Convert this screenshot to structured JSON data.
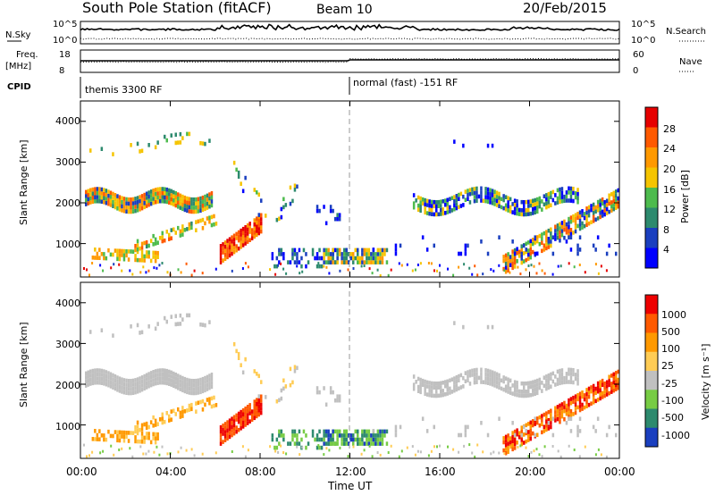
{
  "header": {
    "station": "South Pole Station (fitACF)",
    "beam": "Beam 10",
    "date": "20/Feb/2015"
  },
  "noise_panel": {
    "left_label": "N.Sky",
    "right_label": "N.Search",
    "ticks_left": [
      "10^5",
      "10^0"
    ],
    "ticks_right": [
      "10^5",
      "10^0"
    ]
  },
  "freq_panel": {
    "left_label_1": "Freq.",
    "left_label_2": "[MHz]",
    "right_label": "Nave",
    "ticks_left": [
      "18",
      "8"
    ],
    "ticks_right": [
      "60",
      "0"
    ]
  },
  "cpid_panel": {
    "label": "CPID",
    "modes": [
      "themis 3300 RF",
      "normal (fast) -151 RF"
    ]
  },
  "colors": {
    "power": [
      "#0000ff",
      "#1a3fbf",
      "#2d8a6e",
      "#4dbb4d",
      "#f5c400",
      "#ff9900",
      "#ff5a00",
      "#e60000"
    ],
    "velocity": [
      "#ee0000",
      "#ff5a00",
      "#ff9900",
      "#ffcc55",
      "#c0c0c0",
      "#77cc44",
      "#2d8a6e",
      "#1a3fbf"
    ]
  },
  "chart_data": [
    {
      "type": "heatmap",
      "name": "power",
      "ylabel": "Slant Range [km]",
      "yticks": [
        "1000",
        "2000",
        "3000",
        "4000"
      ],
      "ylim": [
        180,
        4500
      ],
      "xlim": [
        0,
        24
      ],
      "colorbar_label": "Power [dB]",
      "colorbar_ticks": [
        "4",
        "8",
        "12",
        "16",
        "20",
        "24",
        "28"
      ],
      "colorbar_range": [
        0,
        32
      ]
    },
    {
      "type": "heatmap",
      "name": "velocity",
      "ylabel": "Slant Range [km]",
      "yticks": [
        "1000",
        "2000",
        "3000",
        "4000"
      ],
      "ylim": [
        180,
        4500
      ],
      "xlim": [
        0,
        24
      ],
      "colorbar_label": "Velocity [m s⁻¹]",
      "colorbar_ticks": [
        "1000",
        "500",
        "100",
        "25",
        "-25",
        "-100",
        "-500",
        "-1000"
      ]
    }
  ],
  "xaxis": {
    "ticks": [
      "00:00",
      "04:00",
      "08:00",
      "12:00",
      "16:00",
      "20:00",
      "00:00"
    ],
    "label": "Time UT"
  }
}
